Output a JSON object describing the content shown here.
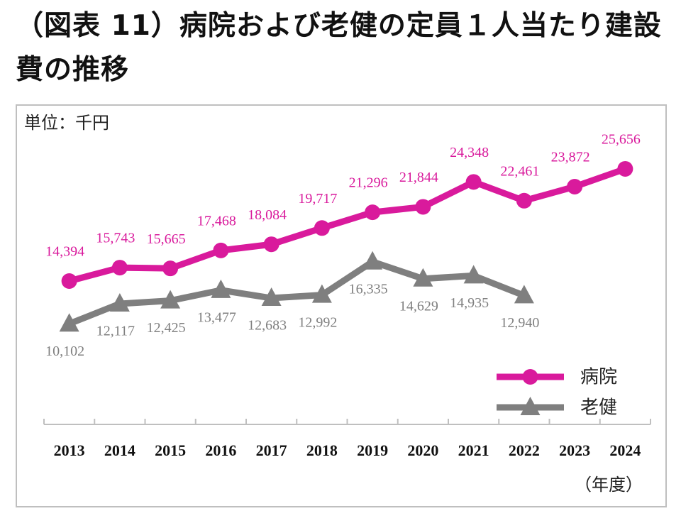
{
  "chart_data": {
    "type": "line",
    "title": "（図表 11）病院および老健の定員１人当たり建設費の推移",
    "unit": "単位：千円",
    "x_label": "（年度）",
    "categories": [
      "2013",
      "2014",
      "2015",
      "2016",
      "2017",
      "2018",
      "2019",
      "2020",
      "2021",
      "2022",
      "2023",
      "2024"
    ],
    "series": [
      {
        "name": "病院",
        "color": "#d91a9c",
        "marker": "circle",
        "values": [
          14394,
          15743,
          15665,
          17468,
          18084,
          19717,
          21296,
          21844,
          24348,
          22461,
          23872,
          25656
        ],
        "value_labels": [
          "14,394",
          "15,743",
          "15,665",
          "17,468",
          "18,084",
          "19,717",
          "21,296",
          "21,844",
          "24,348",
          "22,461",
          "23,872",
          "25,656"
        ],
        "label_position": "above"
      },
      {
        "name": "老健",
        "color": "#7f7f7f",
        "marker": "triangle",
        "values": [
          10102,
          12117,
          12425,
          13477,
          12683,
          12992,
          16335,
          14629,
          14935,
          12940,
          null,
          null
        ],
        "value_labels": [
          "10,102",
          "12,117",
          "12,425",
          "13,477",
          "12,683",
          "12,992",
          "16,335",
          "14,629",
          "14,935",
          "12,940",
          null,
          null
        ],
        "label_position": "below"
      }
    ],
    "ylim": [
      0,
      30000
    ],
    "legend": "lower right"
  }
}
